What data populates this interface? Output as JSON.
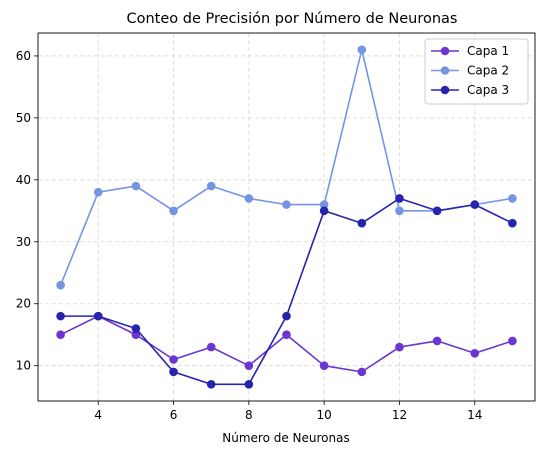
{
  "chart_data": {
    "type": "line",
    "title": "Conteo de Precisión por Número de Neuronas",
    "xlabel": "Número de Neuronas",
    "ylabel": "",
    "x": [
      3,
      4,
      5,
      6,
      7,
      8,
      9,
      10,
      11,
      12,
      13,
      14,
      15
    ],
    "xlim": [
      2.4,
      15.6
    ],
    "ylim": [
      4.3,
      63.7
    ],
    "xticks": [
      4,
      6,
      8,
      10,
      12,
      14
    ],
    "yticks": [
      10,
      20,
      30,
      40,
      50,
      60
    ],
    "grid": true,
    "legend_position": "top-right",
    "series": [
      {
        "name": "Capa 1",
        "color": "#6a35d0",
        "values": [
          15,
          18,
          15,
          11,
          13,
          10,
          15,
          10,
          9,
          13,
          14,
          12,
          14
        ]
      },
      {
        "name": "Capa 2",
        "color": "#7595e3",
        "values": [
          23,
          38,
          39,
          35,
          39,
          37,
          36,
          36,
          61,
          35,
          35,
          36,
          37
        ]
      },
      {
        "name": "Capa 3",
        "color": "#2424ad",
        "values": [
          18,
          18,
          16,
          9,
          7,
          7,
          18,
          35,
          33,
          37,
          35,
          36,
          33
        ]
      }
    ]
  }
}
